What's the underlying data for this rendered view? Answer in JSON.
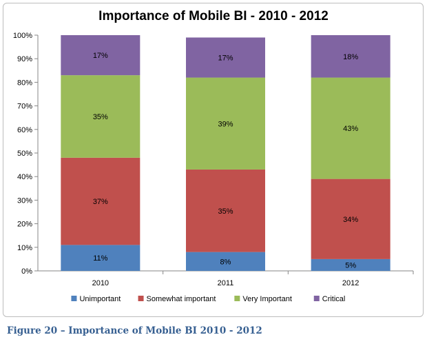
{
  "chart_data": {
    "type": "bar",
    "stacked": true,
    "title": "Importance of Mobile BI - 2010 - 2012",
    "categories": [
      "2010",
      "2011",
      "2012"
    ],
    "series": [
      {
        "name": "Unimportant",
        "values": [
          11,
          8,
          5
        ],
        "labels": [
          "11%",
          "8%",
          "5%"
        ],
        "color": "#4f81bd"
      },
      {
        "name": "Somewhat important",
        "values": [
          37,
          35,
          34
        ],
        "labels": [
          "37%",
          "35%",
          "34%"
        ],
        "color": "#c0504d"
      },
      {
        "name": "Very Important",
        "values": [
          35,
          39,
          43
        ],
        "labels": [
          "35%",
          "39%",
          "43%"
        ],
        "color": "#9bbb59"
      },
      {
        "name": "Critical",
        "values": [
          17,
          17,
          18
        ],
        "labels": [
          "17%",
          "17%",
          "18%"
        ],
        "color": "#8064a2"
      }
    ],
    "ylim": [
      0,
      100
    ],
    "yticks": [
      "0%",
      "10%",
      "20%",
      "30%",
      "40%",
      "50%",
      "60%",
      "70%",
      "80%",
      "90%",
      "100%"
    ],
    "legend_position": "bottom",
    "grid": false
  },
  "caption": "Figure 20 – Importance of Mobile BI 2010 - 2012"
}
